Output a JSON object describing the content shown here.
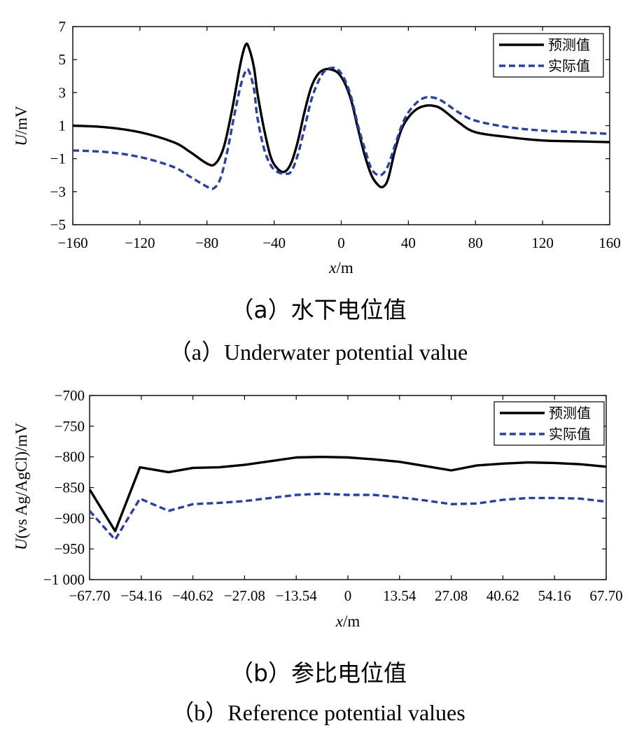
{
  "figures": [
    {
      "caption_cn": "（a）水下电位值",
      "caption_en": "（a）Underwater potential value"
    },
    {
      "caption_cn": "（b）参比电位值",
      "caption_en": "（b）Reference potential values"
    }
  ],
  "chart_data": [
    {
      "type": "line",
      "title": "",
      "xlabel": "x/m",
      "ylabel": "U/mV",
      "xlim": [
        -160,
        160
      ],
      "ylim": [
        -5,
        7
      ],
      "x_ticks": [
        "−160",
        "−120",
        "−80",
        "−40",
        "0",
        "40",
        "80",
        "120",
        "160"
      ],
      "x_tick_values": [
        -160,
        -120,
        -80,
        -40,
        0,
        40,
        80,
        120,
        160
      ],
      "y_ticks": [
        "7",
        "5",
        "3",
        "1",
        "−1",
        "−3",
        "−5"
      ],
      "y_tick_values": [
        7,
        5,
        3,
        1,
        -1,
        -3,
        -5
      ],
      "grid": false,
      "legend_position": "top-right",
      "series": [
        {
          "name": "预测值",
          "color": "#000000",
          "style": "solid",
          "x": [
            -160,
            -140,
            -120,
            -100,
            -90,
            -80,
            -75,
            -70,
            -65,
            -60,
            -57,
            -55,
            -52,
            -50,
            -46,
            -42,
            -38,
            -34,
            -30,
            -26,
            -22,
            -18,
            -14,
            -10,
            -6,
            -2,
            2,
            6,
            10,
            14,
            18,
            22,
            25,
            28,
            32,
            36,
            40,
            45,
            50,
            55,
            60,
            70,
            80,
            100,
            120,
            140,
            160
          ],
          "y": [
            1.0,
            0.9,
            0.6,
            0.0,
            -0.6,
            -1.3,
            -1.3,
            -0.3,
            2.0,
            4.8,
            5.9,
            5.7,
            4.5,
            3.0,
            0.8,
            -0.9,
            -1.6,
            -1.8,
            -1.3,
            0.0,
            1.8,
            3.3,
            4.1,
            4.4,
            4.4,
            4.2,
            3.6,
            2.5,
            0.8,
            -0.8,
            -2.0,
            -2.6,
            -2.7,
            -2.2,
            -0.5,
            0.8,
            1.5,
            2.0,
            2.2,
            2.2,
            2.0,
            1.2,
            0.6,
            0.3,
            0.1,
            0.05,
            0.0
          ]
        },
        {
          "name": "实际值",
          "color": "#2a3f9e",
          "style": "dashed",
          "x": [
            -160,
            -140,
            -120,
            -100,
            -90,
            -80,
            -76,
            -72,
            -68,
            -64,
            -60,
            -57,
            -55,
            -52,
            -50,
            -46,
            -42,
            -38,
            -34,
            -30,
            -26,
            -22,
            -18,
            -14,
            -10,
            -6,
            -2,
            2,
            6,
            10,
            14,
            18,
            22,
            25,
            28,
            32,
            36,
            40,
            45,
            50,
            55,
            60,
            70,
            80,
            100,
            120,
            140,
            160
          ],
          "y": [
            -0.5,
            -0.6,
            -0.9,
            -1.5,
            -2.1,
            -2.7,
            -2.8,
            -2.2,
            -0.6,
            1.5,
            3.4,
            4.3,
            4.3,
            3.2,
            1.5,
            -0.4,
            -1.4,
            -1.8,
            -1.9,
            -1.8,
            -0.8,
            0.8,
            2.5,
            3.6,
            4.3,
            4.5,
            4.4,
            3.8,
            2.7,
            1.0,
            -0.4,
            -1.6,
            -2.0,
            -1.9,
            -1.4,
            -0.2,
            1.0,
            1.8,
            2.4,
            2.7,
            2.7,
            2.5,
            1.8,
            1.3,
            0.9,
            0.7,
            0.6,
            0.5
          ]
        }
      ]
    },
    {
      "type": "line",
      "title": "",
      "xlabel": "x/m",
      "ylabel": "U(vs Ag/AgCl)/mV",
      "xlim": [
        -67.7,
        67.7
      ],
      "ylim": [
        -1000,
        -700
      ],
      "x_ticks": [
        "−67.70",
        "−54.16",
        "−40.62",
        "−27.08",
        "−13.54",
        "0",
        "13.54",
        "27.08",
        "40.62",
        "54.16",
        "67.70"
      ],
      "x_tick_values": [
        -67.7,
        -54.16,
        -40.62,
        -27.08,
        -13.54,
        0,
        13.54,
        27.08,
        40.62,
        54.16,
        67.7
      ],
      "y_ticks": [
        "−700",
        "−750",
        "−800",
        "−850",
        "−900",
        "−950",
        "−1 000"
      ],
      "y_tick_values": [
        -700,
        -750,
        -800,
        -850,
        -900,
        -950,
        -1000
      ],
      "grid": false,
      "legend_position": "top-right",
      "series": [
        {
          "name": "预测值",
          "color": "#000000",
          "style": "solid",
          "x": [
            -67.7,
            -61,
            -54.5,
            -47,
            -40.6,
            -33.8,
            -27.1,
            -20.3,
            -13.5,
            -6.8,
            0,
            6.8,
            13.5,
            20.3,
            27.08,
            33.8,
            40.6,
            47.4,
            54.16,
            60.9,
            67.7
          ],
          "y": [
            -853,
            -921,
            -817,
            -825,
            -818,
            -817,
            -813,
            -807,
            -801,
            -800,
            -801,
            -804,
            -808,
            -815,
            -822,
            -814,
            -811,
            -809,
            -810,
            -812,
            -816
          ]
        },
        {
          "name": "实际值",
          "color": "#2a3f9e",
          "style": "dashed",
          "x": [
            -67.7,
            -61,
            -54.5,
            -47,
            -40.6,
            -33.8,
            -27.1,
            -20.3,
            -13.5,
            -6.8,
            0,
            6.8,
            13.5,
            20.3,
            27.08,
            33.8,
            40.6,
            47.4,
            54.16,
            60.9,
            67.7
          ],
          "y": [
            -888,
            -935,
            -868,
            -888,
            -877,
            -875,
            -872,
            -867,
            -862,
            -860,
            -862,
            -862,
            -866,
            -871,
            -877,
            -876,
            -870,
            -867,
            -867,
            -868,
            -873
          ]
        }
      ]
    }
  ]
}
